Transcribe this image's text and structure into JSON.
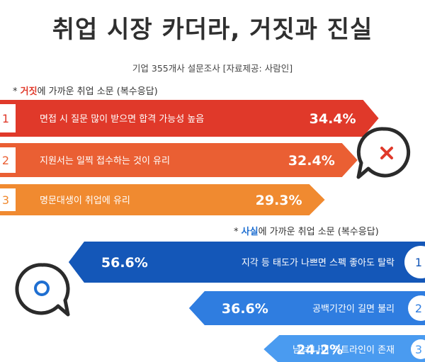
{
  "title": "취업 시장 카더라, 거짓과 진실",
  "subtitle": "기업 355개사 설문조사  [자료제공: 사람인]",
  "sections": {
    "false_prefix": "* ",
    "false_word": "거짓",
    "false_suffix": "에 가까운 취업 소문 (복수응답)",
    "fact_prefix": "* ",
    "fact_word": "사실",
    "fact_suffix": "에 가까운 취업 소문 (복수응답)"
  },
  "chart_data": [
    {
      "type": "bar",
      "categories": [
        "면접 시 질문 많이 받으면 합격 가능성 높음",
        "지원서는 일찍 접수하는 것이 유리",
        "명문대생이 취업에 유리"
      ],
      "ranks": [
        "1",
        "2",
        "3"
      ],
      "values": [
        34.4,
        32.4,
        29.3
      ],
      "value_labels": [
        "34.4%",
        "32.4%",
        "29.3%"
      ],
      "colors": [
        "#e0392a",
        "#ea5f33",
        "#f08a30"
      ],
      "icon": "x-mark-icon"
    },
    {
      "type": "bar",
      "categories": [
        "지각 등 태도가 나쁘면 스펙 좋아도 탈락",
        "공백기간이 길면 불리",
        "남녀  나이 커트라인이 존재"
      ],
      "ranks": [
        "1",
        "2",
        "3"
      ],
      "values": [
        56.6,
        36.6,
        24.2
      ],
      "value_labels": [
        "56.6%",
        "36.6%",
        "24.2%"
      ],
      "colors": [
        "#1457b8",
        "#2f7de0",
        "#4a9bf0"
      ],
      "icon": "circle-o-icon"
    }
  ]
}
